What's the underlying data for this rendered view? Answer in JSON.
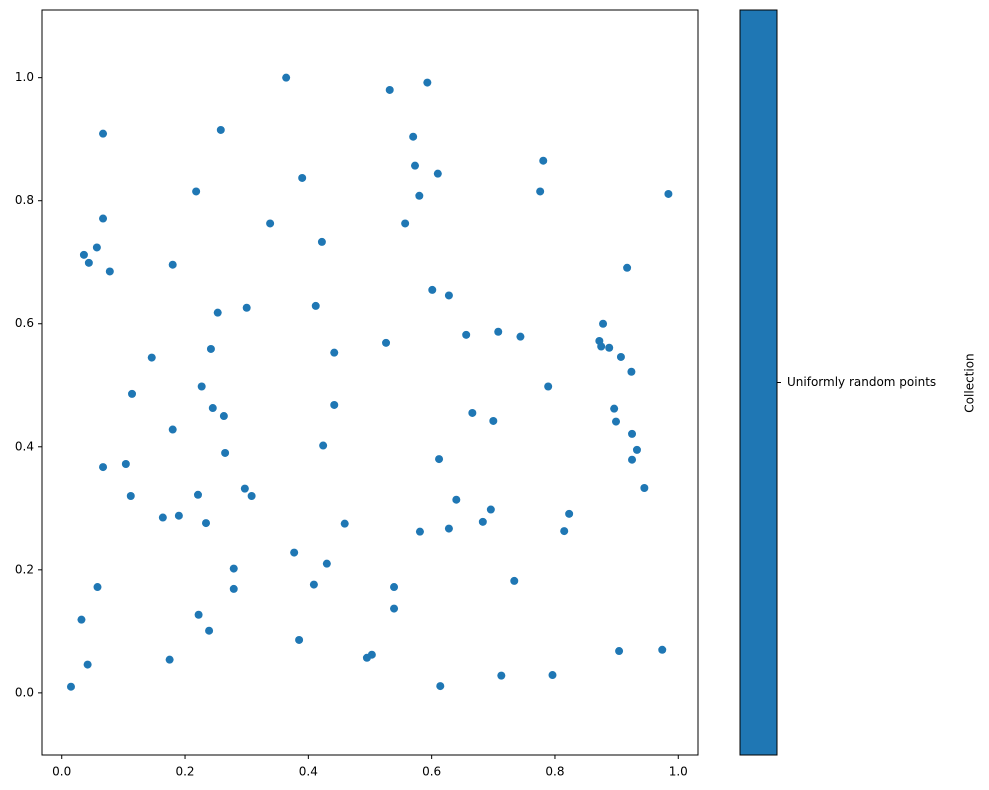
{
  "chart_data": {
    "type": "scatter",
    "series": [
      {
        "name": "Uniformly random points",
        "color": "#1f77b4",
        "x": [
          0.015,
          0.032,
          0.058,
          0.042,
          0.175,
          0.222,
          0.239,
          0.279,
          0.279,
          0.385,
          0.377,
          0.409,
          0.43,
          0.495,
          0.503,
          0.539,
          0.539,
          0.614,
          0.713,
          0.734,
          0.796,
          0.904,
          0.974,
          0.164,
          0.19,
          0.234,
          0.221,
          0.112,
          0.104,
          0.067,
          0.18,
          0.114,
          0.146,
          0.265,
          0.297,
          0.308,
          0.245,
          0.263,
          0.227,
          0.242,
          0.253,
          0.3,
          0.459,
          0.424,
          0.442,
          0.442,
          0.412,
          0.526,
          0.581,
          0.628,
          0.64,
          0.612,
          0.683,
          0.696,
          0.7,
          0.666,
          0.656,
          0.708,
          0.744,
          0.628,
          0.601,
          0.789,
          0.823,
          0.815,
          0.872,
          0.875,
          0.878,
          0.888,
          0.907,
          0.924,
          0.896,
          0.899,
          0.925,
          0.933,
          0.925,
          0.945,
          0.917,
          0.984,
          0.781,
          0.776,
          0.61,
          0.58,
          0.557,
          0.573,
          0.57,
          0.532,
          0.593,
          0.364,
          0.39,
          0.338,
          0.422,
          0.258,
          0.218,
          0.18,
          0.067,
          0.067,
          0.057,
          0.036,
          0.044,
          0.078
        ],
        "values": [
          0.01,
          0.119,
          0.172,
          0.046,
          0.054,
          0.127,
          0.101,
          0.202,
          0.169,
          0.086,
          0.228,
          0.176,
          0.21,
          0.057,
          0.062,
          0.172,
          0.137,
          0.011,
          0.028,
          0.182,
          0.029,
          0.068,
          0.07,
          0.285,
          0.288,
          0.276,
          0.322,
          0.32,
          0.372,
          0.367,
          0.428,
          0.486,
          0.545,
          0.39,
          0.332,
          0.32,
          0.463,
          0.45,
          0.498,
          0.559,
          0.618,
          0.626,
          0.275,
          0.402,
          0.468,
          0.553,
          0.629,
          0.569,
          0.262,
          0.267,
          0.314,
          0.38,
          0.278,
          0.298,
          0.442,
          0.455,
          0.582,
          0.587,
          0.579,
          0.646,
          0.655,
          0.498,
          0.291,
          0.263,
          0.572,
          0.563,
          0.6,
          0.561,
          0.546,
          0.522,
          0.462,
          0.441,
          0.421,
          0.395,
          0.379,
          0.333,
          0.691,
          0.811,
          0.865,
          0.815,
          0.844,
          0.808,
          0.763,
          0.857,
          0.904,
          0.98,
          0.992,
          1.0,
          0.837,
          0.763,
          0.733,
          0.915,
          0.815,
          0.696,
          0.909,
          0.771,
          0.724,
          0.712,
          0.699,
          0.685
        ]
      }
    ],
    "xlim": [
      -0.032,
      1.032
    ],
    "ylim": [
      -0.101,
      1.11
    ],
    "xticks": [
      {
        "value": 0,
        "label": "0.0"
      },
      0.2,
      0.4,
      0.6,
      0.8,
      {
        "value": 1,
        "label": "1.0"
      }
    ],
    "yticks": [
      {
        "value": 0,
        "label": "0.0"
      },
      0.2,
      0.4,
      0.6,
      0.8,
      {
        "value": 1,
        "label": "1.0"
      }
    ],
    "colorbar_label": "Collection"
  }
}
